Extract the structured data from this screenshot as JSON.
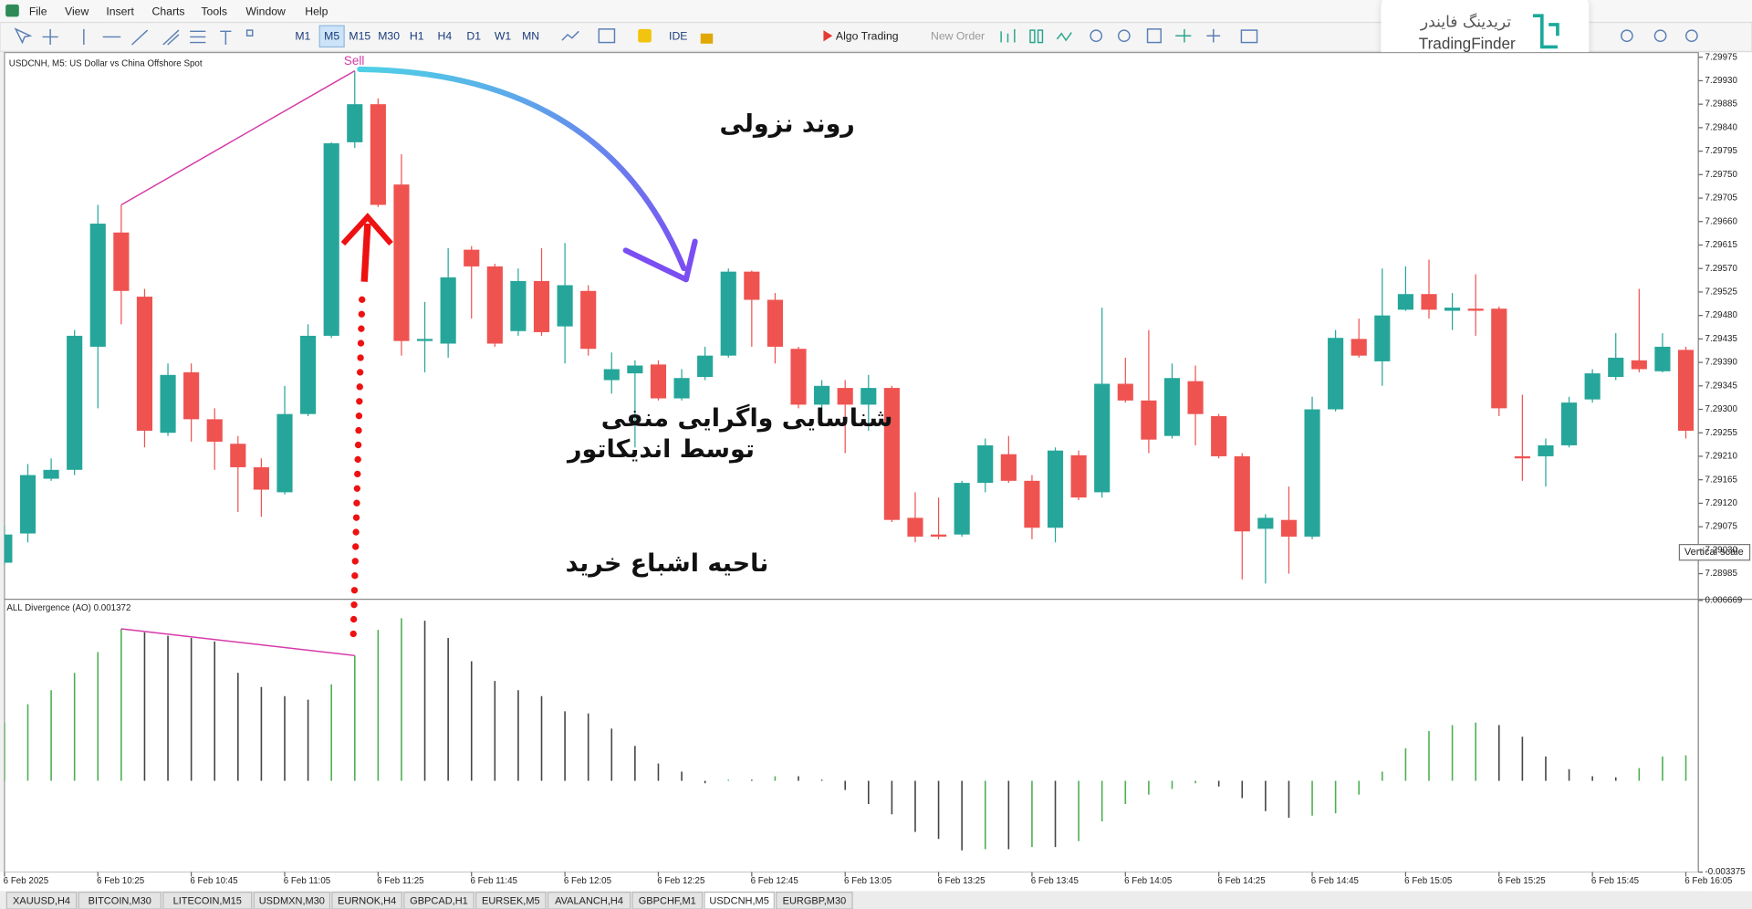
{
  "menu": [
    "File",
    "View",
    "Insert",
    "Charts",
    "Tools",
    "Window",
    "Help"
  ],
  "toolbar": {
    "timeframes": [
      "M1",
      "M5",
      "M15",
      "M30",
      "H1",
      "H4",
      "D1",
      "W1",
      "MN"
    ],
    "ide": "IDE",
    "algo_trading": "Algo Trading",
    "new_order": "New Order"
  },
  "logo": {
    "fa": "تریدینگ فایندر",
    "en": "TradingFinder"
  },
  "tooltip": "Vertical scale",
  "tabs": [
    "XAUUSD,H4",
    "BITCOIN,M30",
    "LITECOIN,M15",
    "USDMXN,M30",
    "EURNOK,H4",
    "GBPCAD,H1",
    "EURSEK,M5",
    "AVALANCH,H4",
    "GBPCHF,M1",
    "USDCNH,M5",
    "EURGBP,M30"
  ],
  "active_tab": "USDCNH,M5",
  "chart_data": [
    {
      "type": "candlestick",
      "title": "USDCNH, M5:  US Dollar vs China Offshore Spot",
      "annotations": [
        "Sell",
        "روند نزولی",
        "شناسایی واگرایی منفی",
        "توسط اندیکاتور",
        "ناحیه اشباع خرید"
      ],
      "categories": [
        "6 Feb 2025",
        null,
        null,
        null,
        "6 Feb 10:25",
        null,
        null,
        null,
        "6 Feb 10:45",
        null,
        null,
        null,
        "6 Feb 11:05",
        null,
        null,
        null,
        "6 Feb 11:25",
        null,
        null,
        null,
        "6 Feb 11:45",
        null,
        null,
        null,
        "6 Feb 12:05",
        null,
        null,
        null,
        "6 Feb 12:25",
        null,
        null,
        null,
        "6 Feb 12:45",
        null,
        null,
        null,
        "6 Feb 13:05",
        null,
        null,
        null,
        "6 Feb 13:25",
        null,
        null,
        null,
        "6 Feb 13:45",
        null,
        null,
        null,
        "6 Feb 14:05",
        null,
        null,
        null,
        "6 Feb 14:25",
        null,
        null,
        null,
        "6 Feb 14:45",
        null,
        null,
        null,
        "6 Feb 15:05",
        null,
        null,
        null,
        "6 Feb 15:25",
        null,
        null,
        null,
        "6 Feb 15:45",
        null,
        null,
        null,
        "6 Feb 16:05"
      ],
      "open": [
        7.29006,
        7.29062,
        7.29167,
        7.29184,
        7.2942,
        7.29639,
        7.29516,
        7.29255,
        7.29371,
        7.29281,
        7.29234,
        7.29189,
        7.29141,
        7.29291,
        7.29441,
        7.29812,
        7.29885,
        7.29731,
        7.29431,
        7.29426,
        7.29606,
        7.29574,
        7.2945,
        7.29546,
        7.29459,
        7.29527,
        7.29356,
        7.29369,
        7.29386,
        7.29321,
        7.29362,
        7.29403,
        7.29564,
        7.2951,
        7.29416,
        7.29309,
        7.29341,
        7.29309,
        7.29341,
        7.29092,
        7.2906,
        7.2906,
        7.29159,
        7.29214,
        7.29163,
        7.29073,
        7.29212,
        7.29141,
        7.29349,
        7.29317,
        7.29249,
        7.29354,
        7.29287,
        7.2921,
        7.29071,
        7.29088,
        7.29056,
        7.293,
        7.29435,
        7.29392,
        7.29491,
        7.29521,
        7.29489,
        7.29493,
        7.29493,
        7.2921,
        7.2921,
        7.29231,
        7.29319,
        7.29362,
        7.29394,
        7.29373,
        7.29414
      ],
      "high": [
        7.29077,
        7.29195,
        7.29206,
        7.29452,
        7.29692,
        7.29692,
        7.29531,
        7.29388,
        7.29388,
        7.29302,
        7.29249,
        7.29206,
        7.29345,
        7.29463,
        7.29812,
        7.29949,
        7.29896,
        7.29789,
        7.29506,
        7.29609,
        7.29613,
        7.29579,
        7.2957,
        7.29609,
        7.29619,
        7.29538,
        7.29409,
        7.29394,
        7.29394,
        7.29377,
        7.2942,
        7.2957,
        7.29566,
        7.29523,
        7.2942,
        7.29356,
        7.29356,
        7.29366,
        7.29345,
        7.29141,
        7.29131,
        7.29163,
        7.29244,
        7.29249,
        7.29174,
        7.29227,
        7.29221,
        7.29495,
        7.29399,
        7.29452,
        7.29388,
        7.29384,
        7.29291,
        7.29216,
        7.29099,
        7.29152,
        7.29324,
        7.29452,
        7.29474,
        7.2957,
        7.29574,
        7.29587,
        7.29523,
        7.29559,
        7.29497,
        7.29328,
        7.29244,
        7.29324,
        7.29377,
        7.29446,
        7.29531,
        7.29446,
        7.2942
      ],
      "low": [
        7.29002,
        7.29045,
        7.29163,
        7.29174,
        7.29302,
        7.29463,
        7.29227,
        7.29249,
        7.29238,
        7.29184,
        7.29103,
        7.29094,
        7.29137,
        7.29287,
        7.29437,
        7.29801,
        7.29688,
        7.29403,
        7.29371,
        7.29399,
        7.29474,
        7.2942,
        7.29441,
        7.29441,
        7.29388,
        7.29403,
        7.2933,
        7.29227,
        7.29317,
        7.29317,
        7.29356,
        7.29399,
        7.2942,
        7.29388,
        7.29302,
        7.29281,
        7.29216,
        7.29259,
        7.29084,
        7.29045,
        7.29051,
        7.29056,
        7.29141,
        7.29159,
        7.29051,
        7.29045,
        7.29126,
        7.29131,
        7.29313,
        7.29216,
        7.29244,
        7.29231,
        7.29206,
        7.28974,
        7.28966,
        7.28985,
        7.29051,
        7.29296,
        7.29399,
        7.29345,
        7.29489,
        7.29474,
        7.29452,
        7.29441,
        7.29287,
        7.29163,
        7.29152,
        7.29227,
        7.29313,
        7.29356,
        7.29371,
        7.29371,
        7.29244
      ],
      "close": [
        7.2906,
        7.29174,
        7.29184,
        7.29441,
        7.29656,
        7.29527,
        7.29259,
        7.29366,
        7.29281,
        7.29238,
        7.29189,
        7.29146,
        7.29291,
        7.29441,
        7.2981,
        7.29885,
        7.29692,
        7.29431,
        7.29435,
        7.29553,
        7.29574,
        7.29426,
        7.29546,
        7.29448,
        7.29538,
        7.29416,
        7.29377,
        7.29384,
        7.29321,
        7.2936,
        7.29403,
        7.29564,
        7.2951,
        7.2942,
        7.29309,
        7.29345,
        7.29309,
        7.29341,
        7.29088,
        7.29056,
        7.29056,
        7.29159,
        7.29231,
        7.29163,
        7.29073,
        7.29221,
        7.29131,
        7.29349,
        7.29317,
        7.29242,
        7.2936,
        7.29291,
        7.2921,
        7.29066,
        7.29092,
        7.29056,
        7.293,
        7.29437,
        7.29403,
        7.2948,
        7.29521,
        7.29491,
        7.29495,
        7.29489,
        7.29302,
        7.29206,
        7.29231,
        7.29313,
        7.29369,
        7.29399,
        7.29377,
        7.2942,
        7.29259
      ],
      "up_color": "#26a69a",
      "down_color": "#ef5350",
      "divergence_color": "#d63aa8",
      "ylim": [
        7.28938,
        7.29984
      ],
      "yticks": [
        7.28985,
        {
          "value": 7.2903,
          "label": "7.29030"
        },
        7.29075,
        {
          "value": 7.2912,
          "label": "7.29120"
        },
        7.29165,
        {
          "value": 7.2921,
          "label": "7.29210"
        },
        7.29255,
        {
          "value": 7.293,
          "label": "7.29300"
        },
        7.29345,
        {
          "value": 7.2939,
          "label": "7.29390"
        },
        7.29435,
        {
          "value": 7.2948,
          "label": "7.29480"
        },
        7.29525,
        {
          "value": 7.2957,
          "label": "7.29570"
        },
        7.29615,
        {
          "value": 7.2966,
          "label": "7.29660"
        },
        7.29705,
        {
          "value": 7.2975,
          "label": "7.29750"
        },
        7.29795,
        {
          "value": 7.2984,
          "label": "7.29840"
        },
        7.29885,
        {
          "value": 7.2993,
          "label": "7.29930"
        },
        7.29975
      ],
      "grid": false
    },
    {
      "type": "bar",
      "title": "ALL Divergence (AO) 0.001372",
      "values": [
        0.00215,
        0.00283,
        0.00335,
        0.00399,
        0.00476,
        0.00562,
        0.00549,
        0.00536,
        0.00528,
        0.00515,
        0.00399,
        0.00347,
        0.00313,
        0.003,
        0.00356,
        0.00463,
        0.00558,
        0.00601,
        0.00592,
        0.00528,
        0.00442,
        0.00369,
        0.00335,
        0.00313,
        0.00257,
        0.00249,
        0.00193,
        0.00129,
        0.00064,
        0.00034,
        -9e-05,
        4e-05,
        4e-05,
        0.00017,
        0.00017,
        4e-05,
        -0.00034,
        -0.00086,
        -0.00124,
        -0.00189,
        -0.00215,
        -0.00257,
        -0.00253,
        -0.00253,
        -0.00245,
        -0.00245,
        -0.00223,
        -0.0015,
        -0.00086,
        -0.00051,
        -0.0003,
        -9e-05,
        -0.00021,
        -0.00064,
        -0.00112,
        -0.00137,
        -0.00129,
        -0.0012,
        -0.00051,
        0.00034,
        0.0012,
        0.00184,
        0.00206,
        0.00215,
        0.00206,
        0.00163,
        0.0009,
        0.00043,
        0.00017,
        0.00013,
        0.00047,
        0.0009,
        0.00094
      ],
      "up_color": "#4caf50",
      "down_color": "#444444",
      "divergence_color": "#d63aa8",
      "ylim": [
        -0.003375,
        0.006669
      ],
      "yticks": [
        0.006669,
        -0.003375
      ]
    }
  ]
}
